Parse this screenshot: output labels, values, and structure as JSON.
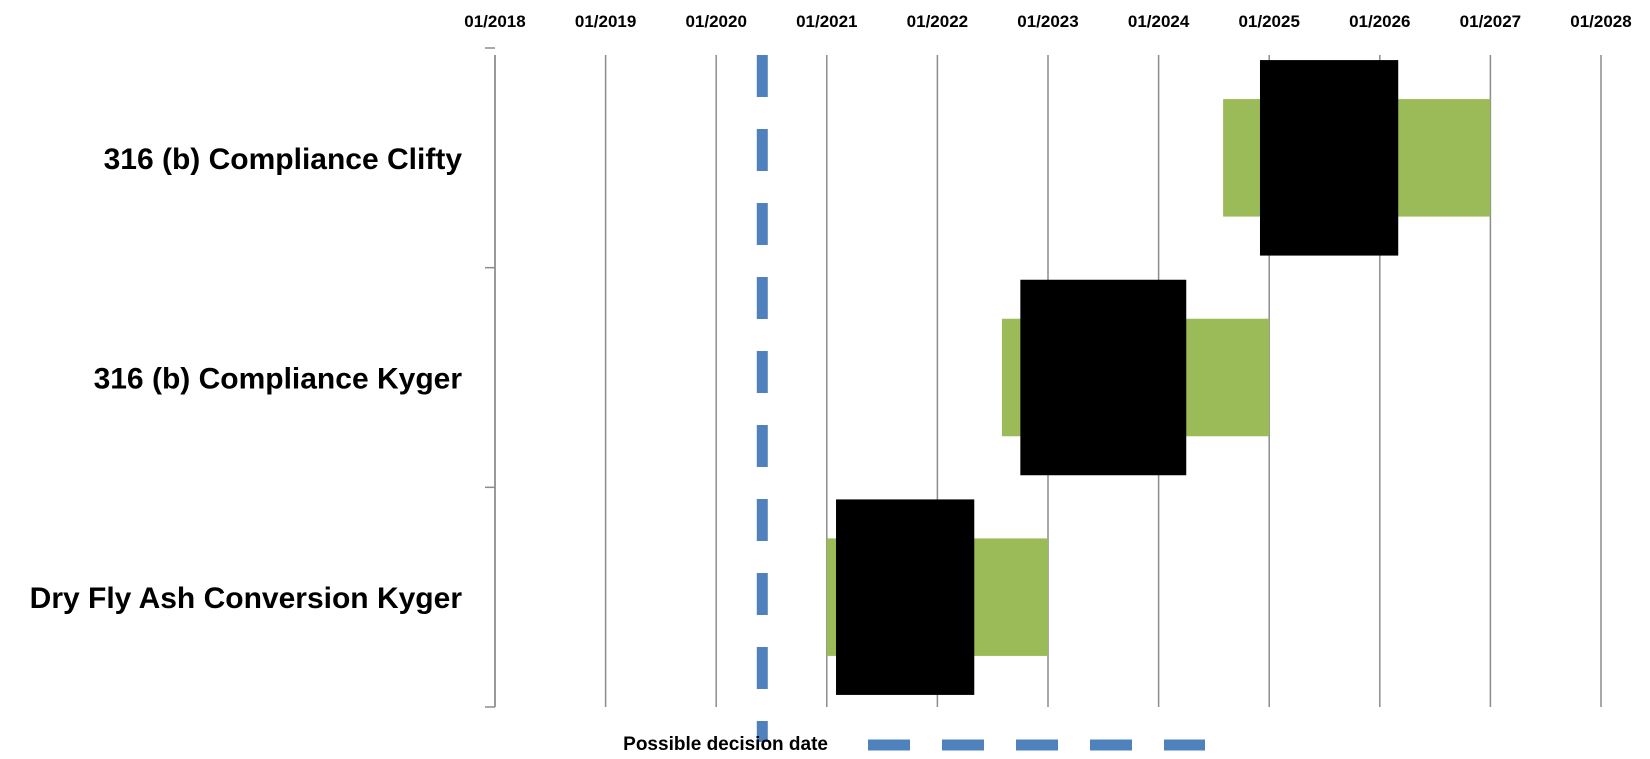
{
  "chart_data": {
    "type": "bar",
    "subtype": "gantt",
    "x_axis": {
      "position": "top",
      "ticks": [
        "01/2018",
        "01/2019",
        "01/2020",
        "01/2021",
        "01/2022",
        "01/2023",
        "01/2024",
        "01/2025",
        "01/2026",
        "01/2027",
        "01/2028"
      ],
      "range": [
        "2018-01",
        "2028-01"
      ]
    },
    "grid": "vertical",
    "categories": [
      "316 (b) Compliance Clifty",
      "316 (b) Compliance Kyger",
      "Dry Fly Ash Conversion Kyger"
    ],
    "series": [
      {
        "color": "#9BBB59",
        "values": [
          {
            "start": "2024-08",
            "end": "2027-01"
          },
          {
            "start": "2022-08",
            "end": "2025-01"
          },
          {
            "start": "2021-01",
            "end": "2023-01"
          }
        ]
      },
      {
        "color": "#000000",
        "values": [
          {
            "start": "2024-12",
            "end": "2026-03"
          },
          {
            "start": "2022-10",
            "end": "2024-04"
          },
          {
            "start": "2021-02",
            "end": "2022-05"
          }
        ]
      }
    ],
    "reference_line": {
      "date": "2020-06",
      "label": "Possible decision date",
      "color": "#4F81BD",
      "style": "dashed"
    },
    "legend": {
      "position": "bottom",
      "entries": [
        "Possible decision date"
      ]
    }
  }
}
